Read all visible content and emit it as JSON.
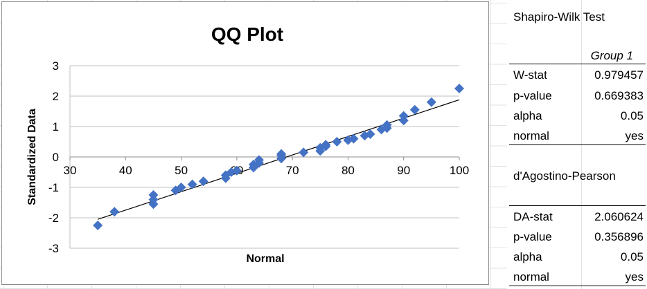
{
  "chart_data": {
    "type": "scatter",
    "title": "QQ Plot",
    "xlabel": "Normal",
    "ylabel": "Standardized Data",
    "xlim": [
      30,
      100
    ],
    "ylim": [
      -3,
      3
    ],
    "x_ticks": [
      "30",
      "40",
      "50",
      "60",
      "70",
      "80",
      "90",
      "100"
    ],
    "y_ticks": [
      "3",
      "2",
      "1",
      "0",
      "-1",
      "-2",
      "-3"
    ],
    "grid": "horizontal",
    "marker_color": "#4472c4",
    "series": [
      {
        "x": [
          35,
          38,
          45,
          45,
          45,
          49,
          50,
          52,
          54,
          58,
          58,
          59,
          60,
          63,
          63,
          64,
          64,
          68,
          68,
          68,
          72,
          75,
          75,
          76,
          76,
          78,
          80,
          81,
          83,
          84,
          86,
          87,
          87,
          90,
          90,
          92,
          95,
          100
        ],
        "y": [
          -2.25,
          -1.8,
          -1.55,
          -1.4,
          -1.25,
          -1.1,
          -1.0,
          -0.9,
          -0.8,
          -0.7,
          -0.6,
          -0.5,
          -0.45,
          -0.35,
          -0.25,
          -0.2,
          -0.1,
          -0.05,
          0.05,
          0.1,
          0.15,
          0.2,
          0.3,
          0.35,
          0.4,
          0.5,
          0.55,
          0.6,
          0.7,
          0.75,
          0.9,
          0.95,
          1.05,
          1.2,
          1.35,
          1.55,
          1.8,
          2.25
        ]
      }
    ],
    "trendline": {
      "x": [
        35,
        100
      ],
      "y": [
        -2.05,
        1.88
      ]
    }
  },
  "shapiro": {
    "title": "Shapiro-Wilk Test",
    "group": "Group 1",
    "rows": [
      {
        "label": "W-stat",
        "value": "0.979457"
      },
      {
        "label": "p-value",
        "value": "0.669383"
      },
      {
        "label": "alpha",
        "value": "0.05"
      },
      {
        "label": "normal",
        "value": "yes"
      }
    ]
  },
  "dagostino": {
    "title": "d'Agostino-Pearson",
    "rows": [
      {
        "label": "DA-stat",
        "value": "2.060624"
      },
      {
        "label": "p-value",
        "value": "0.356896"
      },
      {
        "label": "alpha",
        "value": "0.05"
      },
      {
        "label": "normal",
        "value": "yes"
      }
    ]
  }
}
